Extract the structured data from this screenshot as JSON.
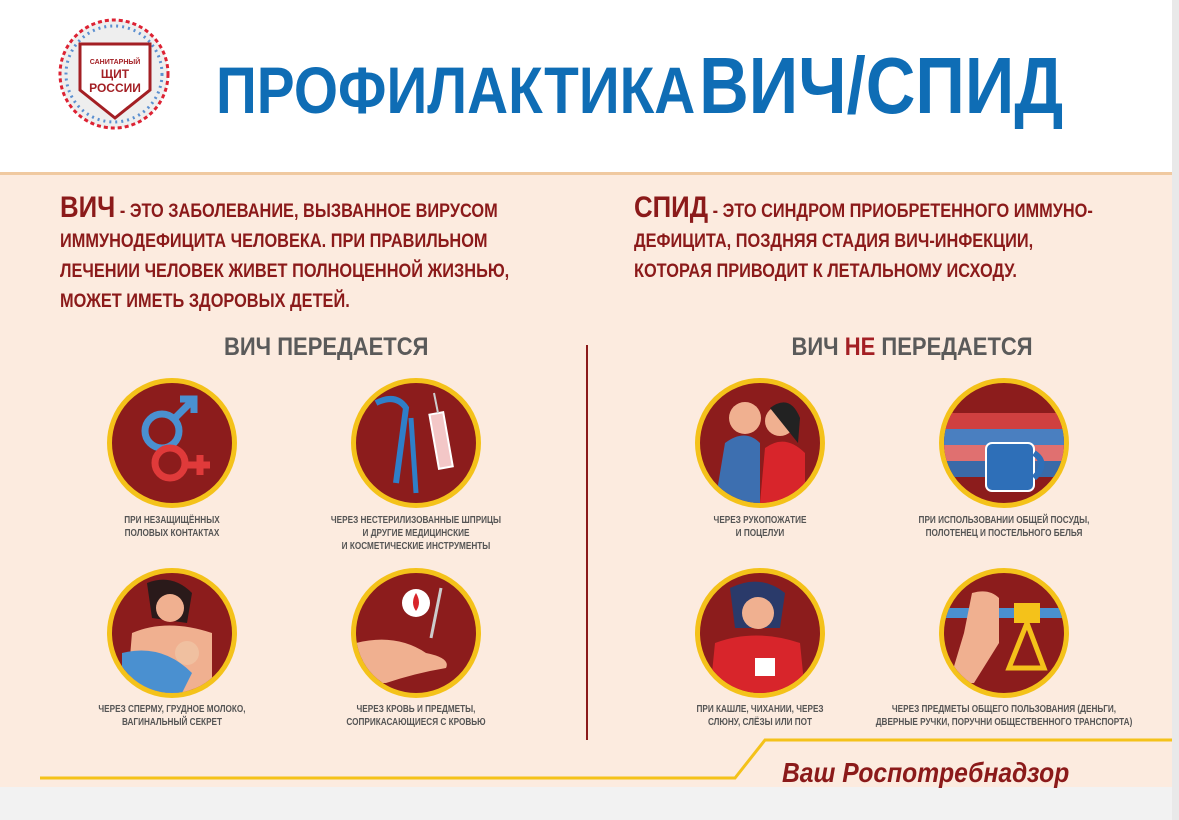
{
  "logo": {
    "text": "САНИТАРНЫЙ ЩИТ РОССИИ"
  },
  "title": {
    "part1": "ПРОФИЛАКТИКА",
    "part2": "ВИЧ/СПИД"
  },
  "hiv_def": {
    "key": "ВИЧ",
    "lines": [
      "- ЭТО ЗАБОЛЕВАНИЕ, ВЫЗВАННОЕ ВИРУСОМ",
      "ИММУНОДЕФИЦИТА ЧЕЛОВЕКА. ПРИ ПРАВИЛЬНОМ",
      "ЛЕЧЕНИИ ЧЕЛОВЕК ЖИВЕТ ПОЛНОЦЕННОЙ ЖИЗНЬЮ,",
      "МОЖЕТ ИМЕТЬ ЗДОРОВЫХ ДЕТЕЙ."
    ]
  },
  "aids_def": {
    "key": "СПИД",
    "lines": [
      "- ЭТО СИНДРОМ ПРИОБРЕТЕННОГО ИММУНО-",
      "ДЕФИЦИТА, ПОЗДНЯЯ СТАДИЯ ВИЧ-ИНФЕКЦИИ,",
      "КОТОРАЯ ПРИВОДИТ К ЛЕТАЛЬНОМУ ИСХОДУ."
    ]
  },
  "transmitted": {
    "heading": "ВИЧ ПЕРЕДАЕТСЯ",
    "items": [
      {
        "icon": "gender-symbols-icon",
        "caption": [
          "ПРИ НЕЗАЩИЩЁННЫХ",
          "ПОЛОВЫХ КОНТАКТАХ"
        ]
      },
      {
        "icon": "syringe-instruments-icon",
        "caption": [
          "ЧЕРЕЗ НЕСТЕРИЛИЗОВАННЫЕ ШПРИЦЫ",
          "И ДРУГИЕ МЕДИЦИНСКИЕ",
          "И КОСМЕТИЧЕСКИЕ ИНСТРУМЕНТЫ"
        ]
      },
      {
        "icon": "breastfeeding-icon",
        "caption": [
          "ЧЕРЕЗ СПЕРМУ, ГРУДНОЕ МОЛОКО,",
          "ВАГИНАЛЬНЫЙ СЕКРЕТ"
        ]
      },
      {
        "icon": "blood-drop-hand-icon",
        "caption": [
          "ЧЕРЕЗ КРОВЬ И ПРЕДМЕТЫ,",
          "СОПРИКАСАЮЩИЕСЯ С КРОВЬЮ"
        ]
      }
    ]
  },
  "not_transmitted": {
    "heading_a": "ВИЧ",
    "heading_ne": "НЕ",
    "heading_b": "ПЕРЕДАЕТСЯ",
    "items": [
      {
        "icon": "kissing-couple-icon",
        "caption": [
          "ЧЕРЕЗ РУКОПОЖАТИЕ",
          "И ПОЦЕЛУИ"
        ]
      },
      {
        "icon": "mug-towels-icon",
        "caption": [
          "ПРИ ИСПОЛЬЗОВАНИИ  ОБЩЕЙ ПОСУДЫ,",
          "ПОЛОТЕНЕЦ И ПОСТЕЛЬНОГО БЕЛЬЯ"
        ]
      },
      {
        "icon": "coughing-woman-icon",
        "caption": [
          "ПРИ КАШЛЕ, ЧИХАНИИ, ЧЕРЕЗ",
          "СЛЮНУ, СЛЁЗЫ ИЛИ ПОТ"
        ]
      },
      {
        "icon": "handrail-grip-icon",
        "caption": [
          "ЧЕРЕЗ ПРЕДМЕТЫ ОБЩЕГО ПОЛЬЗОВАНИЯ (ДЕНЬГИ,",
          "ДВЕРНЫЕ РУЧКИ, ПОРУЧНИ ОБЩЕСТВЕННОГО ТРАНСПОРТА)"
        ]
      }
    ]
  },
  "footer": {
    "brand": "Ваш Роспотребнадзор"
  },
  "colors": {
    "blue": "#0f6db5",
    "dark_red": "#8b1a1a",
    "yellow": "#f4c21a",
    "peach": "#fcebdf"
  }
}
